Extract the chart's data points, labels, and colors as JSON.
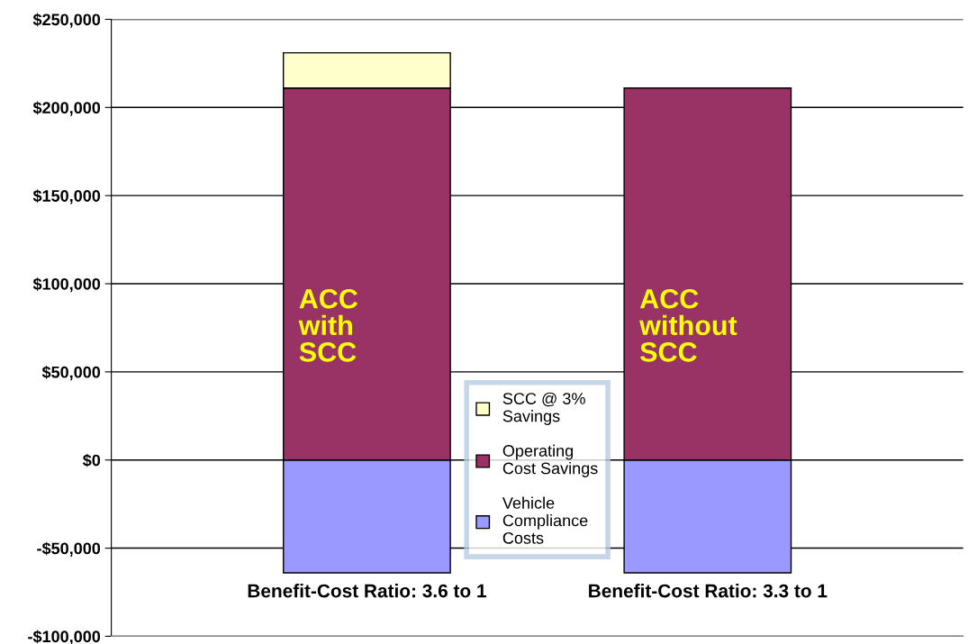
{
  "chart_data": {
    "type": "bar",
    "stacked": true,
    "categories": [
      "Benefit-Cost Ratio: 3.6 to 1",
      "Benefit-Cost Ratio: 3.3 to 1"
    ],
    "series": [
      {
        "name": "Vehicle Compliance Costs",
        "color": "#9999ff",
        "values": [
          -64000,
          -64000
        ]
      },
      {
        "name": "Operating Cost Savings",
        "color": "#993366",
        "values": [
          211000,
          211000
        ]
      },
      {
        "name": "SCC @ 3% Savings",
        "color": "#ffffcc",
        "values": [
          20000,
          null
        ]
      }
    ],
    "ylim": [
      -100000,
      250000
    ],
    "yticks": [
      {
        "value": -100000,
        "label": "-$100,000"
      },
      {
        "value": -50000,
        "label": "-$50,000"
      },
      {
        "value": 0,
        "label": "$0"
      },
      {
        "value": 50000,
        "label": "$50,000"
      },
      {
        "value": 100000,
        "label": "$100,000"
      },
      {
        "value": 150000,
        "label": "$150,000"
      },
      {
        "value": 200000,
        "label": "$200,000"
      },
      {
        "value": 250000,
        "label": "$250,000"
      }
    ],
    "grid": "y",
    "legend": "center",
    "annotations": [
      "ACC\nwith\nSCC",
      "ACC\nwithout\nSCC"
    ]
  }
}
